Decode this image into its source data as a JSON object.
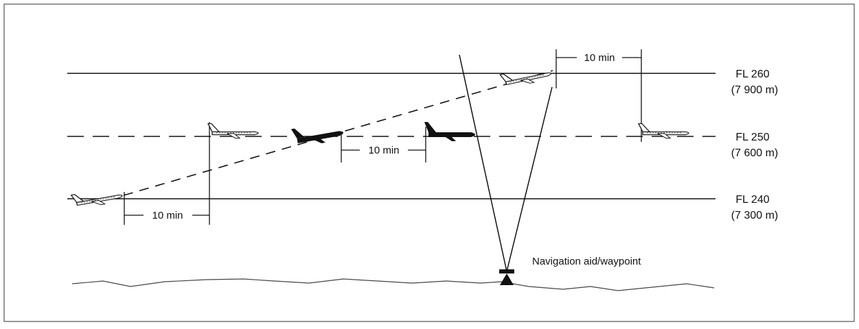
{
  "flight_levels": [
    {
      "name": "FL 260",
      "meters": "(7 900 m)"
    },
    {
      "name": "FL 250",
      "meters": "(7 600 m)"
    },
    {
      "name": "FL 240",
      "meters": "(7 300 m)"
    }
  ],
  "intervals": [
    {
      "label": "10 min"
    },
    {
      "label": "10 min"
    },
    {
      "label": "10 min"
    }
  ],
  "navaid_label": "Navigation aid/waypoint",
  "colors": {
    "line": "#111111",
    "frame": "#555555",
    "background": "#ffffff"
  }
}
